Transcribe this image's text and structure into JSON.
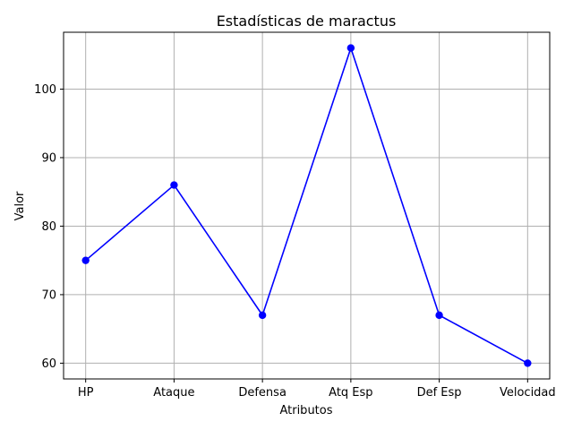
{
  "chart_data": {
    "type": "line",
    "title": "Estadísticas de maractus",
    "xlabel": "Atributos",
    "ylabel": "Valor",
    "categories": [
      "HP",
      "Ataque",
      "Defensa",
      "Atq Esp",
      "Def Esp",
      "Velocidad"
    ],
    "series": [
      {
        "values": [
          75,
          86,
          67,
          106,
          67,
          60
        ],
        "color": "#0000ff",
        "marker": "circle"
      }
    ],
    "ylim": [
      57.7,
      108.3
    ],
    "yticks": [
      60,
      70,
      80,
      90,
      100
    ],
    "grid": true,
    "grid_color": "#b0b0b0"
  }
}
